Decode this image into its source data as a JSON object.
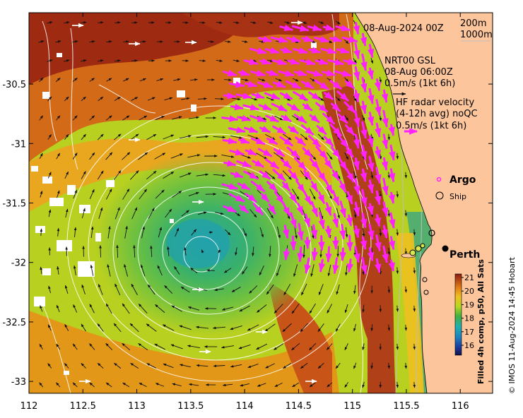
{
  "map": {
    "lon_range": [
      112,
      116.3
    ],
    "lat_range": [
      -33.1,
      -29.9
    ],
    "x_ticks": [
      "112",
      "112.5",
      "113",
      "113.5",
      "114",
      "114.5",
      "115",
      "115.5",
      "116"
    ],
    "y_ticks": [
      "-30.5",
      "-31",
      "-31.5",
      "-32",
      "-32.5",
      "-33"
    ]
  },
  "legend": {
    "date": "08-Aug-2024 00Z",
    "depth_200": "200m",
    "depth_1000": "1000m",
    "gsl_line1": "NRT00 GSL",
    "gsl_line2": "08-Aug 06:00Z",
    "gsl_line3": "0.5m/s (1kt 6h)",
    "hf_line1": "HF radar velocity",
    "hf_line2": "(4-12h avg) noQC",
    "hf_line3": "0.5m/s (1kt 6h)",
    "argo": "Argo",
    "ship": "Ship"
  },
  "places": {
    "perth": "Perth"
  },
  "colorbar": {
    "labels": [
      "21",
      "20",
      "19",
      "18",
      "17",
      "16"
    ],
    "title": "Filled 4h comp, p50, All Sats"
  },
  "credit": "© IMOS 11-Aug-2024 14:45 Hobart",
  "colors": {
    "land": "#fdc59b",
    "hf_arrow": "#ff22ff",
    "geo_arrow": "#111111",
    "contour": "#ffffff"
  }
}
